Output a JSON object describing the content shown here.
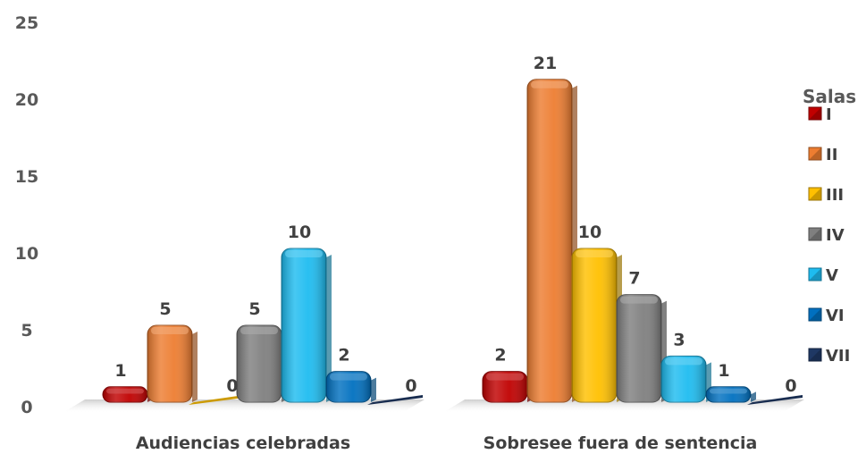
{
  "chart_data": {
    "type": "bar",
    "categories": [
      "Audiencias celebradas",
      "Sobresee fuera de sentencia"
    ],
    "series": [
      {
        "name": "I",
        "values": [
          1,
          2
        ],
        "color": "#c00000"
      },
      {
        "name": "II",
        "values": [
          5,
          21
        ],
        "color": "#ed7d31"
      },
      {
        "name": "III",
        "values": [
          0,
          10
        ],
        "color": "#ffc000"
      },
      {
        "name": "IV",
        "values": [
          5,
          7
        ],
        "color": "#7f7f7f"
      },
      {
        "name": "V",
        "values": [
          10,
          3
        ],
        "color": "#1ebcf0"
      },
      {
        "name": "VI",
        "values": [
          2,
          1
        ],
        "color": "#0070c0"
      },
      {
        "name": "VII",
        "values": [
          0,
          0
        ],
        "color": "#1f3864"
      }
    ],
    "yticks": [
      0,
      5,
      10,
      15,
      20,
      25
    ],
    "ylim": [
      0,
      25
    ],
    "legend_title": "Salas",
    "legend_position": "right",
    "grid": false
  }
}
